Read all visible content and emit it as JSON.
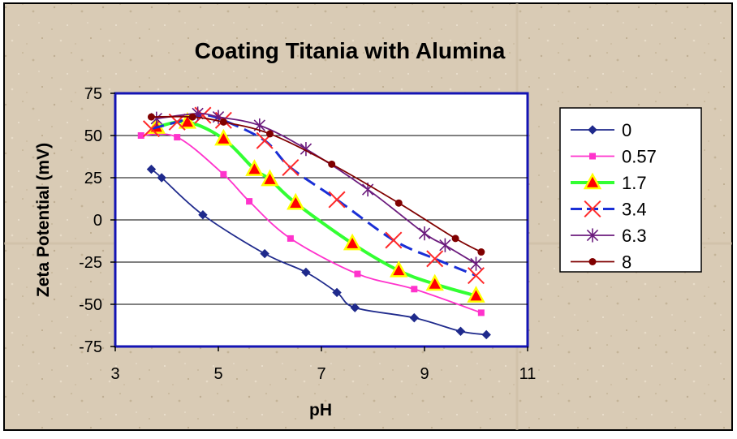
{
  "chart_data": {
    "type": "line",
    "title": "Coating Titania with Alumina",
    "xlabel": "pH",
    "ylabel": "Zeta Potential (mV)",
    "xlim": [
      3,
      11
    ],
    "ylim": [
      -75,
      75
    ],
    "xticks": [
      3,
      5,
      7,
      9,
      11
    ],
    "yticks": [
      75,
      50,
      25,
      0,
      -25,
      -50,
      -75
    ],
    "xtick_labels": [
      "3",
      "5",
      "7",
      "9",
      "11"
    ],
    "ytick_labels": [
      "75",
      "50",
      "25",
      "0",
      "-25",
      "-50",
      "-75"
    ],
    "grid": "horizontal",
    "legend_position": "right",
    "series": [
      {
        "name": "0",
        "color": "#1f2a8c",
        "marker": "diamond",
        "dash": "solid",
        "x": [
          3.7,
          3.9,
          4.7,
          5.9,
          6.7,
          7.3,
          7.65,
          8.8,
          9.7,
          10.2
        ],
        "y": [
          30,
          25,
          3,
          -20,
          -31,
          -43,
          -52,
          -58,
          -66,
          -68
        ]
      },
      {
        "name": "0.57",
        "color": "#ff33cc",
        "marker": "square",
        "dash": "solid",
        "x": [
          3.5,
          4.2,
          5.1,
          5.6,
          6.4,
          7.7,
          8.8,
          10.1
        ],
        "y": [
          50,
          49,
          27,
          11,
          -11,
          -32,
          -41,
          -55
        ]
      },
      {
        "name": "1.7",
        "color": "#33ff33",
        "marker": "triangle",
        "dash": "solid",
        "x": [
          3.8,
          4.4,
          5.1,
          5.7,
          6.0,
          6.5,
          7.6,
          8.5,
          9.2,
          10.0
        ],
        "y": [
          55,
          58,
          48,
          30,
          24,
          10,
          -14,
          -30,
          -38,
          -45
        ]
      },
      {
        "name": "3.4",
        "color": "#1a2fd6",
        "marker": "x",
        "dash": "dashed",
        "x": [
          3.7,
          4.2,
          4.7,
          5.1,
          5.9,
          6.4,
          7.3,
          8.4,
          9.2,
          10.0
        ],
        "y": [
          54,
          58,
          62,
          59,
          47,
          31,
          12,
          -12,
          -23,
          -33
        ]
      },
      {
        "name": "6.3",
        "color": "#6b1b7d",
        "marker": "star",
        "dash": "solid",
        "x": [
          3.8,
          4.6,
          5.0,
          5.8,
          6.7,
          7.9,
          9.0,
          9.4,
          10.0
        ],
        "y": [
          60,
          63,
          61,
          56,
          42,
          18,
          -8,
          -15,
          -26
        ]
      },
      {
        "name": "8",
        "color": "#800000",
        "marker": "circle",
        "dash": "solid",
        "x": [
          3.7,
          4.5,
          5.1,
          6.0,
          7.2,
          8.5,
          9.6,
          10.1
        ],
        "y": [
          61,
          61,
          58,
          51,
          33,
          10,
          -11,
          -19
        ]
      }
    ]
  }
}
